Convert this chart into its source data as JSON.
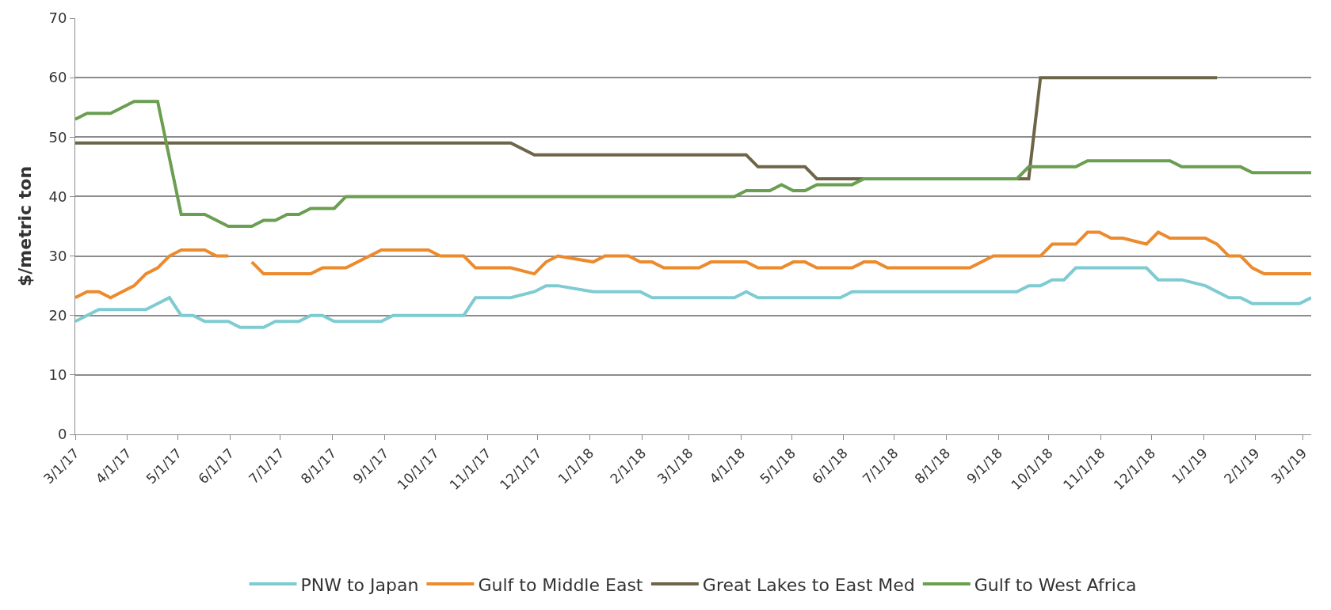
{
  "chart_data": {
    "type": "line",
    "ylabel": "$/metric ton",
    "xlim": [
      "2017-03-01",
      "2019-03-06"
    ],
    "ylim": [
      0,
      70
    ],
    "yticks": [
      0,
      10,
      20,
      30,
      40,
      50,
      60,
      70
    ],
    "xticks": [
      {
        "value": "2017-03-01",
        "label": "3/1/17"
      },
      {
        "value": "2017-04-01",
        "label": "4/1/17"
      },
      {
        "value": "2017-05-01",
        "label": "5/1/17"
      },
      {
        "value": "2017-06-01",
        "label": "6/1/17"
      },
      {
        "value": "2017-07-01",
        "label": "7/1/17"
      },
      {
        "value": "2017-08-01",
        "label": "8/1/17"
      },
      {
        "value": "2017-09-01",
        "label": "9/1/17"
      },
      {
        "value": "2017-10-01",
        "label": "10/1/17"
      },
      {
        "value": "2017-11-01",
        "label": "11/1/17"
      },
      {
        "value": "2017-12-01",
        "label": "12/1/17"
      },
      {
        "value": "2018-01-01",
        "label": "1/1/18"
      },
      {
        "value": "2018-02-01",
        "label": "2/1/18"
      },
      {
        "value": "2018-03-01",
        "label": "3/1/18"
      },
      {
        "value": "2018-04-01",
        "label": "4/1/18"
      },
      {
        "value": "2018-05-01",
        "label": "5/1/18"
      },
      {
        "value": "2018-06-01",
        "label": "6/1/18"
      },
      {
        "value": "2018-07-01",
        "label": "7/1/18"
      },
      {
        "value": "2018-08-01",
        "label": "8/1/18"
      },
      {
        "value": "2018-09-01",
        "label": "9/1/18"
      },
      {
        "value": "2018-10-01",
        "label": "10/1/18"
      },
      {
        "value": "2018-11-01",
        "label": "11/1/18"
      },
      {
        "value": "2018-12-01",
        "label": "12/1/18"
      },
      {
        "value": "2019-01-01",
        "label": "1/1/19"
      },
      {
        "value": "2019-02-01",
        "label": "2/1/19"
      },
      {
        "value": "2019-03-01",
        "label": "3/1/19"
      }
    ],
    "grid": "y",
    "legend": "bottom",
    "marker": "none",
    "line_style": "solid",
    "series": [
      {
        "name": "PNW to Japan",
        "color": "#7ecbd1",
        "x": [
          "2017-03-01",
          "2017-03-15",
          "2017-04-12",
          "2017-04-19",
          "2017-04-26",
          "2017-05-03",
          "2017-05-10",
          "2017-05-17",
          "2017-05-31",
          "2017-06-07",
          "2017-06-21",
          "2017-06-28",
          "2017-07-12",
          "2017-07-19",
          "2017-07-26",
          "2017-08-02",
          "2017-08-30",
          "2017-09-06",
          "2017-10-18",
          "2017-10-25",
          "2017-11-15",
          "2017-11-29",
          "2017-12-06",
          "2017-12-13",
          "2018-01-03",
          "2018-01-31",
          "2018-02-07",
          "2018-03-28",
          "2018-04-04",
          "2018-04-11",
          "2018-05-30",
          "2018-06-06",
          "2018-09-12",
          "2018-09-19",
          "2018-09-26",
          "2018-10-03",
          "2018-10-10",
          "2018-10-17",
          "2018-11-28",
          "2018-12-05",
          "2018-12-19",
          "2019-01-02",
          "2019-01-16",
          "2019-01-23",
          "2019-01-30",
          "2019-02-27",
          "2019-03-06"
        ],
        "values": [
          19,
          21,
          21,
          22,
          23,
          20,
          20,
          19,
          19,
          18,
          18,
          19,
          19,
          20,
          20,
          19,
          19,
          20,
          20,
          23,
          23,
          24,
          25,
          25,
          24,
          24,
          23,
          23,
          24,
          23,
          23,
          24,
          24,
          25,
          25,
          26,
          26,
          28,
          28,
          26,
          26,
          25,
          23,
          23,
          22,
          22,
          23
        ]
      },
      {
        "name": "Gulf to Middle East",
        "color": "#ec8a2c",
        "x": [
          "2017-03-01",
          "2017-03-08",
          "2017-03-15",
          "2017-03-22",
          "2017-04-05",
          "2017-04-12",
          "2017-04-19",
          "2017-04-26",
          "2017-05-03",
          "2017-05-17",
          "2017-05-24",
          "2017-05-31",
          "2017-06-07",
          "2017-06-14",
          "2017-06-21",
          "2017-07-19",
          "2017-07-26",
          "2017-08-09",
          "2017-08-30",
          "2017-09-27",
          "2017-10-04",
          "2017-10-18",
          "2017-10-25",
          "2017-11-15",
          "2017-11-29",
          "2017-12-06",
          "2017-12-13",
          "2018-01-03",
          "2018-01-10",
          "2018-01-24",
          "2018-01-31",
          "2018-02-07",
          "2018-02-14",
          "2018-03-07",
          "2018-03-14",
          "2018-04-04",
          "2018-04-11",
          "2018-04-25",
          "2018-05-02",
          "2018-05-09",
          "2018-05-16",
          "2018-06-06",
          "2018-06-13",
          "2018-06-20",
          "2018-06-27",
          "2018-08-15",
          "2018-08-29",
          "2018-09-26",
          "2018-10-03",
          "2018-10-17",
          "2018-10-24",
          "2018-10-31",
          "2018-11-07",
          "2018-11-14",
          "2018-11-28",
          "2018-12-05",
          "2018-12-12",
          "2019-01-02",
          "2019-01-09",
          "2019-01-16",
          "2019-01-23",
          "2019-01-30",
          "2019-02-06",
          "2019-03-06"
        ],
        "values": [
          23,
          24,
          24,
          23,
          25,
          27,
          28,
          30,
          31,
          31,
          30,
          30,
          null,
          29,
          27,
          27,
          28,
          28,
          31,
          31,
          30,
          30,
          28,
          28,
          27,
          29,
          30,
          29,
          30,
          30,
          29,
          29,
          28,
          28,
          29,
          29,
          28,
          28,
          29,
          29,
          28,
          28,
          29,
          29,
          28,
          28,
          30,
          30,
          32,
          32,
          34,
          34,
          33,
          33,
          32,
          34,
          33,
          33,
          32,
          30,
          30,
          28,
          27,
          27
        ]
      },
      {
        "name": "Great Lakes to East Med",
        "color": "#6e6549",
        "x": [
          "2017-03-01",
          "2017-11-15",
          "2017-11-29",
          "2018-04-04",
          "2018-04-11",
          "2018-05-09",
          "2018-05-16",
          "2018-09-19",
          "2018-09-26",
          "2019-01-09"
        ],
        "values": [
          49,
          49,
          47,
          47,
          45,
          45,
          43,
          43,
          60,
          60
        ]
      },
      {
        "name": "Gulf to West Africa",
        "color": "#6a9e50",
        "x": [
          "2017-03-01",
          "2017-03-08",
          "2017-03-22",
          "2017-04-05",
          "2017-04-19",
          "2017-05-03",
          "2017-05-17",
          "2017-05-31",
          "2017-06-14",
          "2017-06-21",
          "2017-06-28",
          "2017-07-05",
          "2017-07-12",
          "2017-07-19",
          "2017-08-02",
          "2017-08-09",
          "2018-03-28",
          "2018-04-04",
          "2018-04-18",
          "2018-04-25",
          "2018-05-02",
          "2018-05-09",
          "2018-05-16",
          "2018-06-06",
          "2018-06-13",
          "2018-09-12",
          "2018-09-19",
          "2018-10-17",
          "2018-10-24",
          "2018-12-12",
          "2018-12-19",
          "2019-01-23",
          "2019-01-30",
          "2019-03-06"
        ],
        "values": [
          53,
          54,
          54,
          56,
          56,
          37,
          37,
          35,
          35,
          36,
          36,
          37,
          37,
          38,
          38,
          40,
          40,
          41,
          41,
          42,
          41,
          41,
          42,
          42,
          43,
          43,
          45,
          45,
          46,
          46,
          45,
          45,
          44,
          44
        ]
      }
    ]
  }
}
